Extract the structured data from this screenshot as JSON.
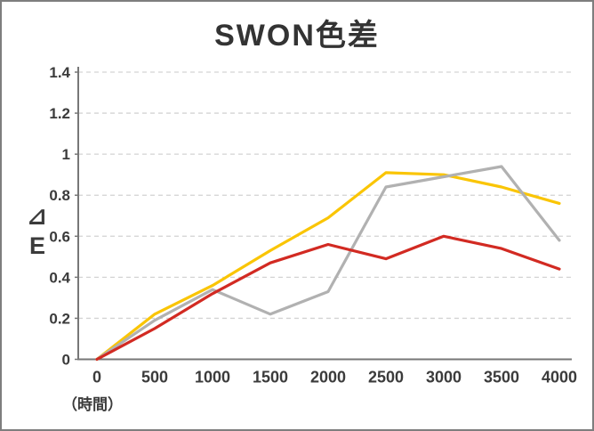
{
  "title": "SWON色差",
  "axes": {
    "ylabel": "⊿E",
    "x_unit": "（時間）"
  },
  "chart_data": {
    "type": "line",
    "title": "SWON色差",
    "xlabel": "（時間）",
    "ylabel": "⊿E",
    "x": [
      0,
      500,
      1000,
      1500,
      2000,
      2500,
      3000,
      3500,
      4000
    ],
    "xlim": [
      0,
      4000
    ],
    "ylim": [
      0,
      1.4
    ],
    "yticks": [
      0,
      0.2,
      0.4,
      0.6,
      0.8,
      1,
      1.2,
      1.4
    ],
    "grid": "horizontal-dashed",
    "legend_position": "none",
    "series": [
      {
        "name": "yellow",
        "color": "#FAC504",
        "values": [
          0,
          0.22,
          0.36,
          0.53,
          0.69,
          0.91,
          0.9,
          0.84,
          0.76
        ]
      },
      {
        "name": "gray",
        "color": "#B1B1B1",
        "values": [
          0,
          0.19,
          0.34,
          0.22,
          0.33,
          0.84,
          0.89,
          0.94,
          0.58
        ]
      },
      {
        "name": "red",
        "color": "#D22A22",
        "values": [
          0,
          0.15,
          0.32,
          0.47,
          0.56,
          0.49,
          0.6,
          0.54,
          0.44
        ]
      }
    ]
  },
  "colors": {
    "background": "#ffffff",
    "frame_border": "#7e7e7e",
    "axis": "#777777",
    "grid": "#d3d3d3",
    "text": "#3b3b3b",
    "title_text": "#333333"
  }
}
